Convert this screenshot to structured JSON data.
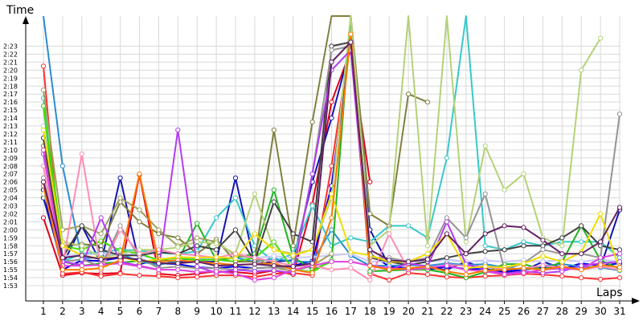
{
  "chart_data": {
    "type": "line",
    "ylabel": "Time",
    "xlabel": "Laps",
    "x": [
      1,
      2,
      3,
      4,
      5,
      6,
      7,
      8,
      9,
      10,
      11,
      12,
      13,
      14,
      15,
      16,
      17,
      18,
      19,
      20,
      21,
      22,
      23,
      24,
      25,
      26,
      27,
      28,
      29,
      30,
      31
    ],
    "xlim": [
      0,
      31
    ],
    "ylim": [
      "1:52",
      "2:27"
    ],
    "yticks": [
      "1:53",
      "1:54",
      "1:55",
      "1:56",
      "1:57",
      "1:58",
      "1:59",
      "2:00",
      "2:01",
      "2:02",
      "2:03",
      "2:04",
      "2:05",
      "2:06",
      "2:07",
      "2:08",
      "2:09",
      "2:10",
      "2:11",
      "2:12",
      "2:13",
      "2:14",
      "2:15",
      "2:16",
      "2:17",
      "2:18",
      "2:19",
      "2:20",
      "2:21",
      "2:22",
      "2:23"
    ],
    "grid": true,
    "series": [
      {
        "color": "#e0001a",
        "values": [
          "2:01.5",
          "1:54.3",
          "1:54.6",
          "1:54.5",
          "1:54.6",
          "2:06.9",
          "1:54.5",
          "1:54.3",
          "1:54.5",
          "1:54.8",
          "1:54.7",
          "1:54.5",
          "1:54.9",
          "1:54.4",
          "2:03.2",
          "2:16.0",
          "2:22.5",
          "2:06.0",
          null,
          null,
          null,
          null,
          null,
          null,
          null,
          null,
          null,
          null,
          null,
          null,
          null
        ]
      },
      {
        "color": "#ff3030",
        "values": [
          "2:20.5",
          "1:54.5",
          "1:54.7",
          "1:54.2",
          "1:54.5",
          "1:54.3",
          "1:54.2",
          "1:54.0",
          "1:54.1",
          "1:54.3",
          "1:54.3",
          "1:54.1",
          "1:54.5",
          "1:54.6",
          "1:54.3",
          "2:08.0",
          "2:24.0",
          "1:54.5",
          "1:53.7",
          "1:54.6",
          "1:54.4",
          "1:54.1",
          "1:54.0",
          "1:54.2",
          "1:54.3",
          "1:54.5",
          "1:54.4",
          "1:54.2",
          "1:54.0",
          "1:53.8",
          "1:54.0"
        ]
      },
      {
        "color": "#1414b4",
        "values": [
          "2:04.0",
          "1:55.6",
          "2:00.5",
          "1:55.8",
          "2:06.5",
          "1:55.7",
          "1:56.2",
          "1:56.0",
          "1:56.0",
          "1:56.0",
          "2:06.5",
          "1:55.7",
          "1:56.0",
          "1:56.2",
          "2:06.0",
          "2:14.0",
          "2:23.0",
          "2:00.0",
          "1:55.5",
          "1:55.0",
          "1:55.2",
          "1:55.0",
          "1:56.0",
          "1:55.1",
          "1:54.7",
          "1:54.9",
          "1:56.0",
          "1:55.2",
          "1:55.4",
          "1:55.3",
          "2:02.5"
        ]
      },
      {
        "color": "#0000e0",
        "values": [
          "2:05.0",
          "1:55.0",
          "1:56.2",
          "1:56.1",
          "1:56.5",
          "1:56.3",
          "1:55.8",
          "1:55.7",
          "1:55.3",
          "1:55.2",
          "1:55.4",
          "1:55.2",
          "1:55.3",
          "1:55.5",
          "1:56.1",
          "2:05.5",
          "2:24.0",
          "1:57.0",
          "1:55.4",
          "1:55.2",
          "1:55.0",
          "1:55.4",
          "1:55.1",
          "1:55.1",
          "1:54.8",
          "1:55.0",
          "1:55.3",
          "1:55.1",
          "1:55.8",
          "1:55.5",
          "1:55.8"
        ]
      },
      {
        "color": "#2a8cd2",
        "values": [
          "2:27.0",
          "2:08.0",
          "1:56.4",
          "1:56.6",
          "1:57.0",
          "1:56.0",
          "1:55.6",
          "1:56.1",
          "1:56.5",
          "1:56.2",
          "1:56.5",
          "1:56.0",
          "1:56.4",
          "1:56.0",
          "1:56.0",
          "2:00.0",
          "1:56.8",
          "1:55.5",
          "1:55.5",
          "1:55.6",
          "1:55.5",
          "1:55.8",
          "1:55.6",
          "1:55.7",
          "1:55.3",
          "1:55.0",
          "1:55.5",
          "1:55.7",
          "1:55.4",
          "1:55.3",
          "1:54.9"
        ]
      },
      {
        "color": "#38c8c8",
        "values": [
          "2:16.5",
          "1:56.0",
          "1:57.0",
          "1:57.2",
          "1:57.5",
          "1:57.4",
          "1:57.1",
          "1:57.0",
          "1:57.3",
          "2:01.5",
          "2:04.0",
          "1:58.0",
          "1:56.0",
          "1:57.0",
          "2:03.0",
          "1:58.0",
          "1:59.0",
          "1:58.5",
          "2:00.5",
          "2:00.5",
          "1:59.0",
          "2:09.0",
          "2:27.0",
          "1:58.0",
          "1:57.5",
          "1:58.5",
          "1:58.0",
          "1:58.5",
          "1:58.5",
          "1:58.5",
          "1:56.5"
        ]
      },
      {
        "color": "#c8c8ff",
        "values": [
          "2:13.0",
          "1:56.7",
          "1:56.9",
          "1:57.0",
          "1:57.0",
          "1:56.8",
          "1:56.3",
          "1:56.6",
          "1:56.5",
          "1:56.4",
          "1:56.6",
          "1:56.5",
          "1:56.7",
          "1:56.5",
          "1:56.6",
          "1:56.8",
          "1:57.0",
          "1:56.0",
          "1:56.0",
          "1:56.2",
          "1:56.0",
          "1:56.3",
          "1:56.0",
          "1:56.2",
          "1:56.0",
          "1:56.2",
          "1:56.0",
          "1:56.3",
          "1:56.0",
          "1:56.3",
          "1:56.0"
        ]
      },
      {
        "color": "#22b422",
        "values": [
          "2:15.5",
          "1:56.0",
          "1:55.5",
          "1:55.8",
          "1:55.9",
          "1:56.1",
          "1:56.0",
          "1:56.2",
          "2:00.8",
          "1:56.2",
          "1:56.5",
          "1:57.0",
          "2:05.0",
          "1:56.6",
          "1:55.0",
          "1:56.0",
          "2:27.0",
          "1:54.8",
          "1:54.9",
          "1:55.0",
          "1:55.0",
          "1:54.6",
          "1:54.0",
          "1:54.7",
          "1:55.7",
          "1:55.7",
          "1:55.0",
          "1:56.0",
          "2:00.5",
          "1:56.2",
          "1:55.1"
        ]
      },
      {
        "color": "#40e000",
        "values": [
          "2:15.5",
          "1:58.0",
          "1:57.5",
          "1:58.6",
          "1:57.4",
          "1:57.0",
          "1:56.2",
          "1:56.5",
          "1:56.2",
          "1:56.3",
          "1:56.0",
          "1:56.5",
          "1:58.5",
          "1:55.0",
          "1:54.7",
          "1:56.2",
          null,
          null,
          null,
          null,
          null,
          null,
          null,
          null,
          null,
          null,
          null,
          null,
          null,
          null,
          null
        ]
      },
      {
        "color": "#808040",
        "values": [
          "2:10.5",
          "1:58.0",
          "1:58.2",
          "1:58.0",
          "2:03.5",
          "2:01.0",
          "1:59.5",
          "1:59.0",
          "1:57.0",
          "1:58.8",
          "1:56.0",
          "1:56.0",
          "2:12.5",
          "1:58.0",
          "2:13.5",
          "2:27.0",
          "2:27.0",
          "2:02.0",
          "2:00.5",
          "2:17.0",
          "2:16.0",
          null,
          null,
          null,
          null,
          null,
          null,
          null,
          null,
          null,
          null
        ]
      },
      {
        "color": "#a0a060",
        "values": [
          "2:17.5",
          "2:00.0",
          "2:00.5",
          "1:59.5",
          "2:04.0",
          "2:02.5",
          "2:00.0",
          "1:58.0",
          "1:59.0",
          "1:58.5",
          "1:56.8",
          "1:56.5",
          "1:55.3",
          "1:54.8",
          "1:55.5",
          "1:57.0",
          null,
          null,
          null,
          null,
          null,
          null,
          null,
          null,
          null,
          null,
          null,
          null,
          null,
          null,
          null
        ]
      },
      {
        "color": "#b4d278",
        "values": [
          "2:04.5",
          "1:58.5",
          "1:58.0",
          "1:56.5",
          "1:57.0",
          "1:57.5",
          "1:57.5",
          "1:57.8",
          "1:58.5",
          "1:58.3",
          "1:57.0",
          "2:04.5",
          "1:57.5",
          "1:57.0",
          "1:57.5",
          "2:04.0",
          "2:27.0",
          "1:58.0",
          "2:00.0",
          "2:27.0",
          "1:58.0",
          "2:27.0",
          "1:58.5",
          "2:10.5",
          "2:05.0",
          "2:07.0",
          "1:59.0",
          "1:58.0",
          "2:20.0",
          "2:24.0",
          null
        ]
      },
      {
        "color": "#404040",
        "values": [
          "2:11.5",
          "1:56.5",
          "2:00.5",
          "1:57.5",
          "1:56.8",
          "1:56.8",
          "1:57.2",
          "1:57.0",
          "1:58.0",
          "1:57.5",
          "2:00.0",
          "1:56.0",
          "2:03.5",
          "1:59.5",
          "1:58.5",
          "2:23.0",
          "2:23.5",
          "1:56.5",
          "1:56.0",
          "1:55.6",
          "1:56.0",
          "1:56.5",
          "1:57.0",
          "1:57.3",
          "1:57.5",
          "1:58.0",
          "1:58.0",
          "1:59.0",
          "2:00.5",
          "1:58.0",
          "1:57.5"
        ]
      },
      {
        "color": "#949494",
        "values": [
          "2:06.5",
          "1:56.0",
          "1:56.3",
          "1:55.4",
          "2:00.5",
          "1:56.5",
          "1:55.2",
          "1:55.4",
          "1:55.2",
          "1:55.2",
          "1:55.0",
          "1:55.2",
          "1:55.3",
          "1:55.2",
          "2:07.0",
          "2:22.5",
          "2:23.0",
          "1:56.5",
          "1:56.5",
          "1:56.0",
          "1:56.5",
          "2:01.5",
          "1:59.0",
          "2:04.5",
          "1:55.0",
          "1:55.8",
          "1:57.5",
          "1:57.0",
          "1:57.0",
          "1:56.5",
          "2:14.5"
        ]
      },
      {
        "color": "#ff8cb4",
        "values": [
          "2:08.0",
          "1:55.5",
          "2:09.5",
          "1:55.0",
          "2:00.0",
          "1:57.0",
          "1:57.5",
          "1:57.0",
          "1:56.8",
          "1:56.5",
          "1:57.0",
          "1:56.5",
          "1:56.0",
          "1:55.5",
          "1:55.5",
          "1:55.0",
          "1:55.2",
          "1:53.7",
          "1:59.5",
          "1:55.0",
          "1:55.2",
          "1:55.6",
          "1:55.5",
          "1:55.4",
          "1:55.0",
          "1:55.2",
          "1:55.5",
          "1:55.3",
          "1:55.0",
          "1:55.4",
          "1:55.0"
        ]
      },
      {
        "color": "#b43cf0",
        "values": [
          "2:09.5",
          "1:56.0",
          "1:55.6",
          "2:01.5",
          "1:56.0",
          "1:55.5",
          "1:55.0",
          "2:12.5",
          "1:55.4",
          "1:54.6",
          "1:55.0",
          "1:54.8",
          "1:54.9",
          "1:54.6",
          "2:07.0",
          "2:20.0",
          "2:22.5",
          "1:55.6",
          "1:55.0",
          "1:55.8",
          "1:55.4",
          "2:01.0",
          "1:55.7",
          "1:55.0",
          "1:54.5",
          "1:54.8",
          "1:54.6",
          "1:54.8",
          "1:55.5",
          "1:55.8",
          "1:56.0"
        ]
      },
      {
        "color": "#e040e0",
        "values": [
          "2:10.0",
          "1:55.5",
          "1:55.5",
          "1:55.6",
          "1:55.8",
          "1:55.4",
          "1:55.0",
          "1:55.0",
          "1:54.7",
          "1:54.8",
          "1:54.5",
          "1:53.7",
          "1:54.0",
          "1:55.0",
          "1:55.5",
          "1:56.0",
          "1:56.0",
          "1:55.5",
          "1:55.2",
          "1:55.0",
          "1:55.3",
          "1:55.5",
          "1:55.0",
          "1:54.8",
          "1:54.4",
          "1:54.6",
          "1:55.0",
          "1:55.2",
          "1:55.0",
          "1:56.5",
          "1:57.0"
        ]
      },
      {
        "color": "#f0dc00",
        "values": [
          "2:12.5",
          "1:58.0",
          "1:56.8",
          "1:56.4",
          "1:56.6",
          "1:56.0",
          "1:56.3",
          "1:56.6",
          "1:56.5",
          "1:56.6",
          "1:56.4",
          "1:59.5",
          "1:57.5",
          "1:56.8",
          "1:57.5",
          "2:04.5",
          "1:57.2",
          "1:56.8",
          "1:56.0",
          "1:56.0",
          "1:57.0",
          "1:59.5",
          "1:55.2",
          "1:55.4",
          "1:55.3",
          "1:55.8",
          "1:56.7",
          "1:56.0",
          "1:57.2",
          "2:02.0",
          "1:55.0"
        ]
      },
      {
        "color": "#ff7800",
        "values": [
          "2:05.5",
          "1:55.0",
          "1:55.0",
          "1:55.2",
          "1:56.2",
          "2:07.0",
          "1:56.0",
          "1:56.2",
          "1:56.0",
          "1:55.8",
          "1:55.6",
          "1:55.7",
          "1:55.8",
          "1:55.0",
          "1:54.6",
          "2:01.5",
          "2:24.5",
          "1:55.5",
          "1:55.0",
          "1:55.2",
          "1:55.4",
          "1:54.8",
          "1:54.4",
          "1:54.9",
          "1:55.0",
          "1:55.2",
          "1:55.0",
          "1:55.4",
          "1:55.0",
          "1:55.6",
          "1:55.3"
        ]
      },
      {
        "color": "#602060",
        "values": [
          "2:06.0",
          "1:56.5",
          "1:56.8",
          "1:56.3",
          "1:56.6",
          "1:56.2",
          "1:55.8",
          "1:55.8",
          "1:56.0",
          "1:55.5",
          "1:55.6",
          "1:55.7",
          "1:55.5",
          "1:55.4",
          "1:55.8",
          "2:21.0",
          "2:23.5",
          "1:57.5",
          "1:56.2",
          "1:56.0",
          "1:56.3",
          "1:59.5",
          "1:57.0",
          "1:59.5",
          "2:00.5",
          "2:00.3",
          "1:58.7",
          "1:57.0",
          "1:57.0",
          "1:58.5",
          "2:02.8"
        ]
      }
    ]
  }
}
